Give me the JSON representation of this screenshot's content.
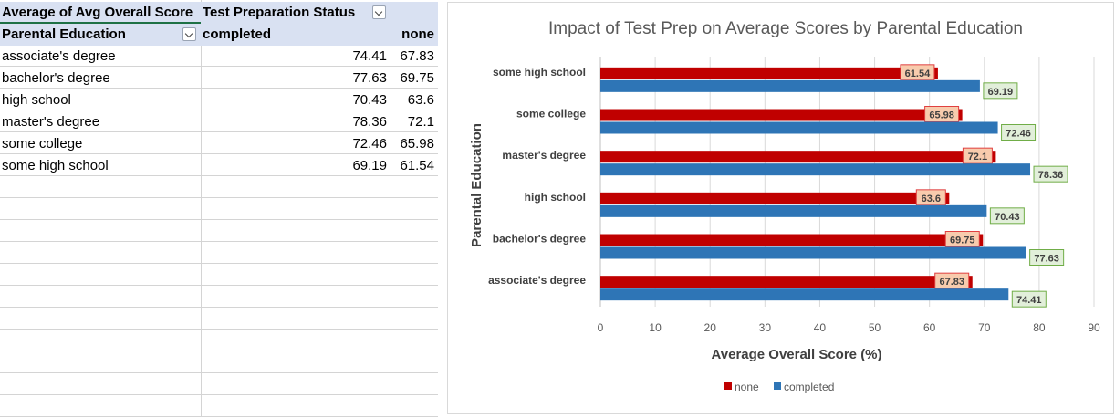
{
  "pivot": {
    "value_header": "Average of Avg Overall Score",
    "column_field": "Test Preparation Status",
    "row_field": "Parental Education",
    "col_completed": "completed",
    "col_none": "none",
    "rows": [
      {
        "label": "associate's degree",
        "completed": "74.41",
        "none": "67.83"
      },
      {
        "label": "bachelor's degree",
        "completed": "77.63",
        "none": "69.75"
      },
      {
        "label": "high school",
        "completed": "70.43",
        "none": "63.6"
      },
      {
        "label": "master's degree",
        "completed": "78.36",
        "none": "72.1"
      },
      {
        "label": "some college",
        "completed": "72.46",
        "none": "65.98"
      },
      {
        "label": "some high school",
        "completed": "69.19",
        "none": "61.54"
      }
    ]
  },
  "chart_data": {
    "type": "bar",
    "orientation": "horizontal",
    "title": "Impact of Test Prep on Average Scores by Parental Education",
    "xlabel": "Average Overall Score (%)",
    "ylabel": "Parental Education",
    "xlim": [
      0,
      90
    ],
    "xticks": [
      0,
      10,
      20,
      30,
      40,
      50,
      60,
      70,
      80,
      90
    ],
    "grid": true,
    "legend_position": "bottom",
    "categories": [
      "some high school",
      "some college",
      "master's degree",
      "high school",
      "bachelor's degree",
      "associate's degree"
    ],
    "series": [
      {
        "name": "none",
        "color": "#c00000",
        "label_bg": "#f8cbad",
        "label_border": "#e04040",
        "values": [
          61.54,
          65.98,
          72.1,
          63.6,
          69.75,
          67.83
        ]
      },
      {
        "name": "completed",
        "color": "#2e75b6",
        "label_bg": "#e2efda",
        "label_border": "#70ad47",
        "values": [
          69.19,
          72.46,
          78.36,
          70.43,
          77.63,
          74.41
        ]
      }
    ]
  }
}
